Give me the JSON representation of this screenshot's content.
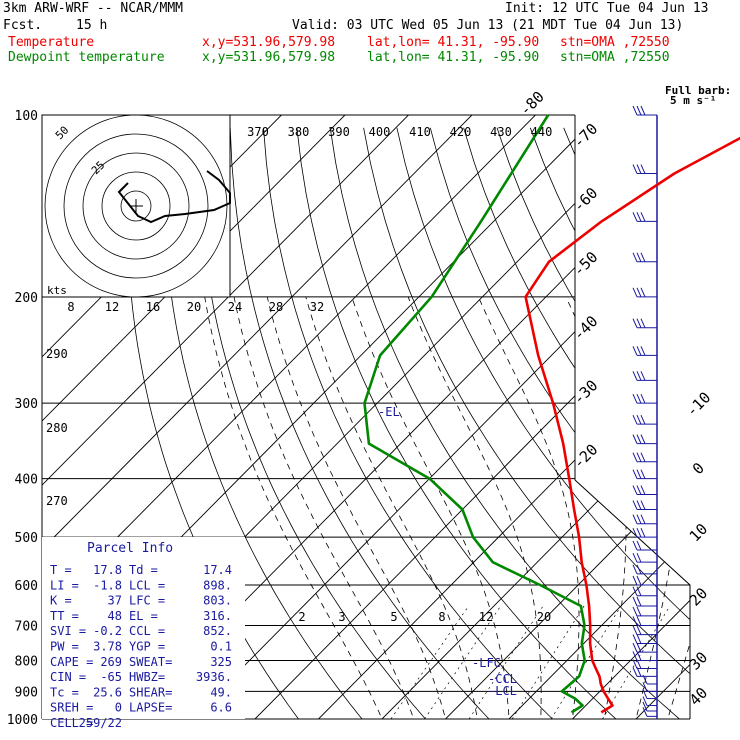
{
  "header": {
    "model": "3km ARW-WRF -- NCAR/MMM",
    "init": "Init: 12 UTC Tue 04 Jun 13",
    "fcst_label": "Fcst.",
    "fcst_value": "15 h",
    "valid": "Valid: 03 UTC Wed 05 Jun 13 (21 MDT Tue 04 Jun 13)",
    "temperature_line": {
      "label": "Temperature",
      "xy": "x,y=531.96,579.98",
      "latlon": "lat,lon= 41.31, -95.90",
      "stn": "stn=OMA ,72550"
    },
    "dewpoint_line": {
      "label": "Dewpoint temperature",
      "xy": "x,y=531.96,579.98",
      "latlon": "lat,lon= 41.31, -95.90",
      "stn": "stn=OMA ,72550"
    }
  },
  "colors": {
    "temperature": "#ee0000",
    "dewpoint": "#008800",
    "parcel_text": "#1a1aa0",
    "grid": "#000000"
  },
  "wind_barbs_label": [
    "Full barb:",
    "5 m s⁻¹"
  ],
  "parcel_info": {
    "title": "Parcel Info",
    "rows": [
      [
        "T  =",
        "17.8",
        "Td =",
        "17.4"
      ],
      [
        "LI =",
        "-1.8",
        "LCL =",
        "898."
      ],
      [
        "K  =",
        "37",
        "LFC =",
        "803."
      ],
      [
        "TT =",
        "48",
        "EL =",
        "316."
      ],
      [
        "SVI =",
        "-0.2",
        "CCL =",
        "852."
      ],
      [
        "PW =",
        "3.78",
        "YGP =",
        "0.1"
      ],
      [
        "CAPE =",
        "269",
        "SWEAT=",
        "325"
      ],
      [
        "CIN =",
        "-65",
        "HWBZ=",
        "3936."
      ],
      [
        "Tc =",
        "25.6",
        "SHEAR=",
        "49."
      ],
      [
        "SREH =",
        "0",
        "LAPSE=",
        "6.6"
      ],
      [
        "CELL =",
        "259/22",
        "",
        ""
      ]
    ]
  },
  "level_markers": [
    "-EL",
    "-LFC",
    "-CCL",
    "-LCL"
  ],
  "hodograph": {
    "units": "kts",
    "ring_labels": [
      "25",
      "50"
    ]
  },
  "chart_data": {
    "type": "line",
    "title": "",
    "ylabel": "",
    "y_scale": "log-pressure",
    "ylim": [
      1000,
      100
    ],
    "pressure_ticks": [
      100,
      200,
      300,
      400,
      500,
      600,
      700,
      800,
      900,
      1000
    ],
    "temperature_ticks": [
      -80,
      -70,
      -60,
      -50,
      -40,
      -30,
      -20,
      -10,
      0,
      10,
      20,
      30,
      40
    ],
    "theta_labels": [
      "370",
      "380",
      "390",
      "400",
      "410",
      "420",
      "430",
      "440",
      "290",
      "280",
      "270"
    ],
    "mixing_ratio_labels": [
      "8",
      "12",
      "16",
      "20",
      "24",
      "28",
      "32",
      "2",
      "3",
      "5",
      "8",
      "12",
      "20"
    ],
    "series": [
      {
        "name": "Temperature",
        "points": [
          [
            975,
            23.5
          ],
          [
            950,
            24.2
          ],
          [
            925,
            22.4
          ],
          [
            900,
            20.6
          ],
          [
            875,
            19.0
          ],
          [
            850,
            17.6
          ],
          [
            825,
            15.8
          ],
          [
            800,
            14.0
          ],
          [
            750,
            11.0
          ],
          [
            700,
            8.2
          ],
          [
            650,
            5.0
          ],
          [
            600,
            1.3
          ],
          [
            550,
            -3.0
          ],
          [
            500,
            -7.3
          ],
          [
            450,
            -12.4
          ],
          [
            400,
            -18.0
          ],
          [
            350,
            -24.4
          ],
          [
            300,
            -32.3
          ],
          [
            250,
            -42.1
          ],
          [
            200,
            -53.2
          ],
          [
            175,
            -55.0
          ],
          [
            150,
            -53.0
          ],
          [
            125,
            -49.0
          ],
          [
            100,
            -41.0
          ]
        ]
      },
      {
        "name": "Dewpoint temperature",
        "points": [
          [
            975,
            18.8
          ],
          [
            950,
            19.5
          ],
          [
            925,
            17.2
          ],
          [
            900,
            14.0
          ],
          [
            850,
            14.4
          ],
          [
            800,
            12.8
          ],
          [
            750,
            9.7
          ],
          [
            700,
            7.3
          ],
          [
            650,
            3.7
          ],
          [
            600,
            -6.0
          ],
          [
            550,
            -17.0
          ],
          [
            500,
            -24.0
          ],
          [
            450,
            -30.0
          ],
          [
            400,
            -40.0
          ],
          [
            350,
            -55.0
          ],
          [
            300,
            -62.0
          ],
          [
            250,
            -67.0
          ],
          [
            200,
            -68.0
          ],
          [
            150,
            -72.0
          ],
          [
            100,
            -78.0
          ]
        ]
      }
    ],
    "wind_levels_hpa": [
      990,
      970,
      950,
      925,
      900,
      875,
      850,
      825,
      800,
      775,
      750,
      725,
      700,
      675,
      650,
      625,
      600,
      575,
      550,
      525,
      500,
      475,
      450,
      425,
      400,
      375,
      350,
      325,
      300,
      275,
      250,
      225,
      200,
      175,
      150,
      125,
      100
    ]
  }
}
